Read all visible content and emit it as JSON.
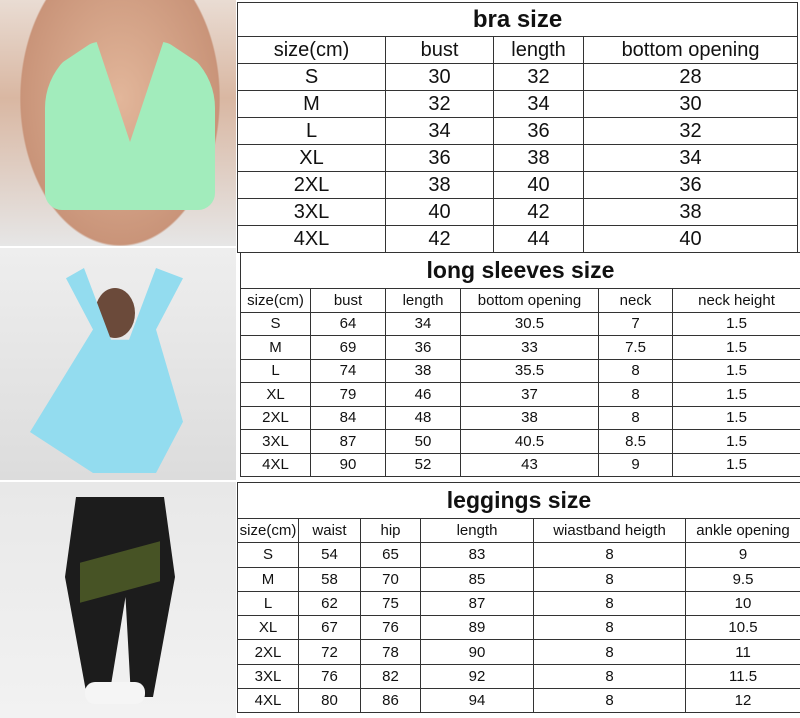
{
  "bra": {
    "title": "bra size",
    "headers": [
      "size(cm)",
      "bust",
      "length",
      "bottom opening"
    ],
    "rows": [
      [
        "S",
        "30",
        "32",
        "28"
      ],
      [
        "M",
        "32",
        "34",
        "30"
      ],
      [
        "L",
        "34",
        "36",
        "32"
      ],
      [
        "XL",
        "36",
        "38",
        "34"
      ],
      [
        "2XL",
        "38",
        "40",
        "36"
      ],
      [
        "3XL",
        "40",
        "42",
        "38"
      ],
      [
        "4XL",
        "42",
        "44",
        "40"
      ]
    ]
  },
  "long_sleeves": {
    "title": "long sleeves size",
    "headers": [
      "size(cm)",
      "bust",
      "length",
      "bottom opening",
      "neck",
      "neck height"
    ],
    "rows": [
      [
        "S",
        "64",
        "34",
        "30.5",
        "7",
        "1.5"
      ],
      [
        "M",
        "69",
        "36",
        "33",
        "7.5",
        "1.5"
      ],
      [
        "L",
        "74",
        "38",
        "35.5",
        "8",
        "1.5"
      ],
      [
        "XL",
        "79",
        "46",
        "37",
        "8",
        "1.5"
      ],
      [
        "2XL",
        "84",
        "48",
        "38",
        "8",
        "1.5"
      ],
      [
        "3XL",
        "87",
        "50",
        "40.5",
        "8.5",
        "1.5"
      ],
      [
        "4XL",
        "90",
        "52",
        "43",
        "9",
        "1.5"
      ]
    ]
  },
  "leggings": {
    "title": "leggings size",
    "headers": [
      "size(cm)",
      "waist",
      "hip",
      "length",
      "wiastband heigth",
      "ankle opening"
    ],
    "rows": [
      [
        "S",
        "54",
        "65",
        "83",
        "8",
        "9"
      ],
      [
        "M",
        "58",
        "70",
        "85",
        "8",
        "9.5"
      ],
      [
        "L",
        "62",
        "75",
        "87",
        "8",
        "10"
      ],
      [
        "XL",
        "67",
        "76",
        "89",
        "8",
        "10.5"
      ],
      [
        "2XL",
        "72",
        "78",
        "90",
        "8",
        "11"
      ],
      [
        "3XL",
        "76",
        "82",
        "92",
        "8",
        "11.5"
      ],
      [
        "4XL",
        "80",
        "86",
        "94",
        "8",
        "12"
      ]
    ]
  },
  "colors": {
    "bra": "#9fe8b8",
    "long_sleeves": "#8fd8ee",
    "leggings": "#1c1c1c",
    "leggings_accent": "#5a6b2a"
  }
}
